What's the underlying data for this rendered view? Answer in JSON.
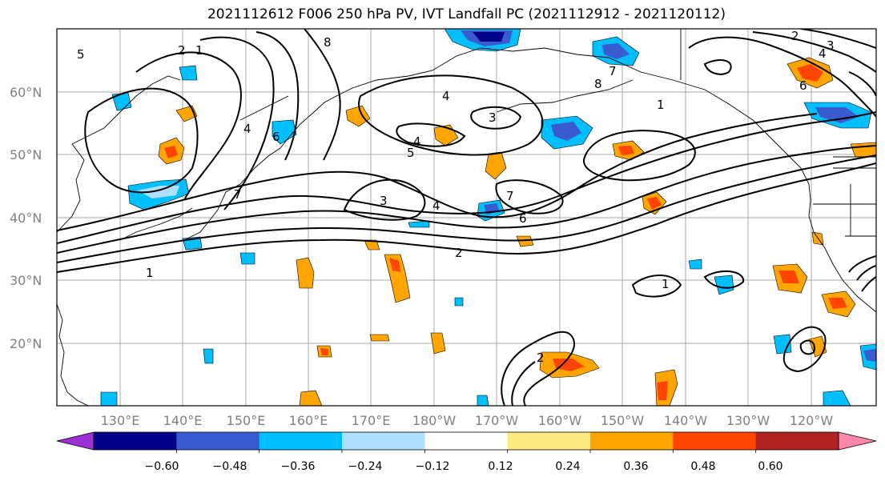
{
  "title": "2021112612 F006 250 hPa PV, IVT Landfall PC (2021112912 - 2021120112)",
  "map": {
    "lat_labels": [
      "60°N",
      "50°N",
      "40°N",
      "30°N",
      "20°N"
    ],
    "lon_labels": [
      "130°E",
      "140°E",
      "150°E",
      "160°E",
      "170°E",
      "180°W",
      "170°W",
      "160°W",
      "150°W",
      "140°W",
      "130°W",
      "120°W"
    ]
  },
  "contour_labels": [
    {
      "text": "5"
    },
    {
      "text": "2"
    },
    {
      "text": "1"
    },
    {
      "text": "8"
    },
    {
      "text": "4"
    },
    {
      "text": "6"
    },
    {
      "text": "7"
    },
    {
      "text": "4"
    },
    {
      "text": "3"
    },
    {
      "text": "4"
    },
    {
      "text": "5"
    },
    {
      "text": "3"
    },
    {
      "text": "4"
    },
    {
      "text": "7"
    },
    {
      "text": "6"
    },
    {
      "text": "2"
    },
    {
      "text": "1"
    },
    {
      "text": "7"
    },
    {
      "text": "8"
    },
    {
      "text": "1"
    },
    {
      "text": "6"
    },
    {
      "text": "2"
    },
    {
      "text": "3"
    },
    {
      "text": "4"
    },
    {
      "text": "1"
    },
    {
      "text": "2"
    }
  ],
  "colorbar": {
    "tick_labels": [
      "−0.60",
      "−0.48",
      "−0.36",
      "−0.24",
      "−0.12",
      "0.12",
      "0.24",
      "0.36",
      "0.48",
      "0.60"
    ],
    "colors": [
      "#9b30d6",
      "#00008b",
      "#3a5bd0",
      "#00bfff",
      "#b0e0ff",
      "#ffffff",
      "#ffea80",
      "#ffa500",
      "#ff4500",
      "#b22222",
      "#ff88aa"
    ]
  }
}
